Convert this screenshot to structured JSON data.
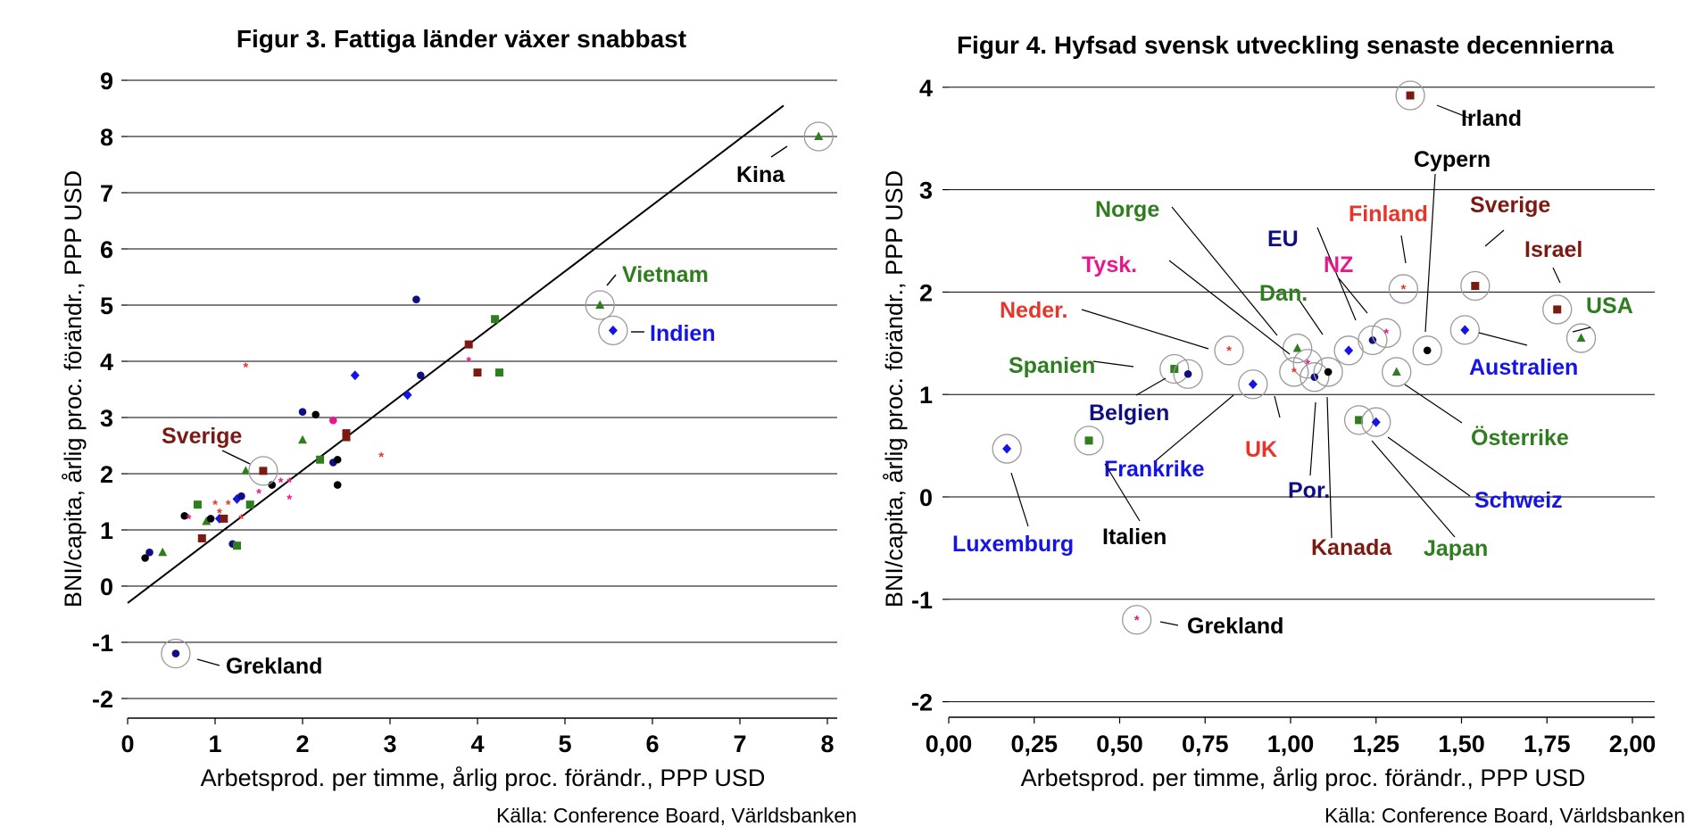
{
  "chart_data": [
    {
      "type": "scatter",
      "title": "Figur 3. Fattiga länder växer snabbast",
      "xlabel": "Arbetsprod. per timme, årlig proc. förändr., PPP USD",
      "ylabel": "BNI/capita, årlig proc. förändr., PPP USD",
      "source": "Källa: Conference Board, Världsbanken",
      "xlim": [
        0,
        8.3
      ],
      "ylim": [
        -2.3,
        9.3
      ],
      "xticks": [
        "0",
        "1",
        "2",
        "3",
        "4",
        "5",
        "6",
        "7",
        "8"
      ],
      "yticks": [
        "-2",
        "-1",
        "0",
        "1",
        "2",
        "3",
        "4",
        "5",
        "6",
        "7",
        "8",
        "9"
      ],
      "grid": "horizontal",
      "trendline": [
        [
          0,
          -0.3
        ],
        [
          7.5,
          8.55
        ]
      ],
      "labeled_points": [
        {
          "label": "Kina",
          "x": 7.9,
          "y": 8.0,
          "color": "#2e7d1f",
          "marker": "triangle",
          "label_color": "#000000"
        },
        {
          "label": "Vietnam",
          "x": 5.4,
          "y": 5.0,
          "color": "#2e7d1f",
          "marker": "triangle",
          "label_color": "#2e7d1f"
        },
        {
          "label": "Indien",
          "x": 5.55,
          "y": 4.55,
          "color": "#1414e6",
          "marker": "diamond",
          "label_color": "#1414e6"
        },
        {
          "label": "Sverige",
          "x": 1.55,
          "y": 2.05,
          "color": "#7b1a12",
          "marker": "square",
          "label_color": "#7b1a12"
        },
        {
          "label": "Grekland",
          "x": 0.55,
          "y": -1.2,
          "color": "#0f0f82",
          "marker": "circle",
          "label_color": "#000000"
        }
      ],
      "points": [
        {
          "x": 0.2,
          "y": 0.5,
          "color": "#000000",
          "marker": "circle"
        },
        {
          "x": 0.25,
          "y": 0.6,
          "color": "#0f0f82",
          "marker": "circle"
        },
        {
          "x": 0.4,
          "y": 0.6,
          "color": "#2e7d1f",
          "marker": "triangle"
        },
        {
          "x": 0.65,
          "y": 1.25,
          "color": "#000000",
          "marker": "circle"
        },
        {
          "x": 0.7,
          "y": 1.2,
          "color": "#e6188c",
          "marker": "star"
        },
        {
          "x": 0.8,
          "y": 1.45,
          "color": "#2e7d1f",
          "marker": "square"
        },
        {
          "x": 0.85,
          "y": 0.85,
          "color": "#7b1a12",
          "marker": "square"
        },
        {
          "x": 0.9,
          "y": 1.15,
          "color": "#2e7d1f",
          "marker": "triangle"
        },
        {
          "x": 0.95,
          "y": 1.2,
          "color": "#000000",
          "marker": "circle"
        },
        {
          "x": 1.0,
          "y": 1.45,
          "color": "#e8352b",
          "marker": "star"
        },
        {
          "x": 1.05,
          "y": 1.3,
          "color": "#e8352b",
          "marker": "star"
        },
        {
          "x": 1.05,
          "y": 1.2,
          "color": "#1414e6",
          "marker": "diamond"
        },
        {
          "x": 1.1,
          "y": 1.2,
          "color": "#7b1a12",
          "marker": "square"
        },
        {
          "x": 1.15,
          "y": 1.45,
          "color": "#e8352b",
          "marker": "star"
        },
        {
          "x": 1.2,
          "y": 0.75,
          "color": "#0f0f82",
          "marker": "circle"
        },
        {
          "x": 1.25,
          "y": 0.72,
          "color": "#2e7d1f",
          "marker": "square"
        },
        {
          "x": 1.25,
          "y": 1.55,
          "color": "#1414e6",
          "marker": "diamond"
        },
        {
          "x": 1.3,
          "y": 1.6,
          "color": "#0f0f82",
          "marker": "circle"
        },
        {
          "x": 1.3,
          "y": 1.2,
          "color": "#e8352b",
          "marker": "star"
        },
        {
          "x": 1.35,
          "y": 2.05,
          "color": "#2e7d1f",
          "marker": "triangle"
        },
        {
          "x": 1.35,
          "y": 3.9,
          "color": "#e8352b",
          "marker": "star"
        },
        {
          "x": 1.4,
          "y": 1.45,
          "color": "#2e7d1f",
          "marker": "square"
        },
        {
          "x": 1.5,
          "y": 1.65,
          "color": "#e6188c",
          "marker": "star"
        },
        {
          "x": 1.65,
          "y": 1.8,
          "color": "#000000",
          "marker": "circle"
        },
        {
          "x": 1.75,
          "y": 1.85,
          "color": "#e6188c",
          "marker": "star"
        },
        {
          "x": 1.85,
          "y": 1.55,
          "color": "#e6188c",
          "marker": "star"
        },
        {
          "x": 1.85,
          "y": 1.85,
          "color": "#e6188c",
          "marker": "star"
        },
        {
          "x": 2.0,
          "y": 3.1,
          "color": "#0f0f82",
          "marker": "circle"
        },
        {
          "x": 2.0,
          "y": 2.6,
          "color": "#2e7d1f",
          "marker": "triangle"
        },
        {
          "x": 2.15,
          "y": 3.05,
          "color": "#000000",
          "marker": "circle"
        },
        {
          "x": 2.2,
          "y": 2.25,
          "color": "#2e7d1f",
          "marker": "square"
        },
        {
          "x": 2.35,
          "y": 2.95,
          "color": "#e6188c",
          "marker": "circle"
        },
        {
          "x": 2.35,
          "y": 2.2,
          "color": "#0f0f82",
          "marker": "circle"
        },
        {
          "x": 2.4,
          "y": 2.25,
          "color": "#000000",
          "marker": "circle"
        },
        {
          "x": 2.4,
          "y": 1.8,
          "color": "#000000",
          "marker": "circle"
        },
        {
          "x": 2.5,
          "y": 2.65,
          "color": "#7b1a12",
          "marker": "square"
        },
        {
          "x": 2.5,
          "y": 2.72,
          "color": "#7b1a12",
          "marker": "square"
        },
        {
          "x": 2.6,
          "y": 3.75,
          "color": "#1414e6",
          "marker": "diamond"
        },
        {
          "x": 2.9,
          "y": 2.3,
          "color": "#e8352b",
          "marker": "star"
        },
        {
          "x": 3.2,
          "y": 3.4,
          "color": "#1414e6",
          "marker": "diamond"
        },
        {
          "x": 3.3,
          "y": 5.1,
          "color": "#0f0f82",
          "marker": "circle"
        },
        {
          "x": 3.35,
          "y": 3.75,
          "color": "#0f0f82",
          "marker": "circle"
        },
        {
          "x": 3.9,
          "y": 4.3,
          "color": "#7b1a12",
          "marker": "square"
        },
        {
          "x": 3.9,
          "y": 4.0,
          "color": "#e6188c",
          "marker": "star"
        },
        {
          "x": 4.0,
          "y": 3.8,
          "color": "#7b1a12",
          "marker": "square"
        },
        {
          "x": 4.2,
          "y": 4.75,
          "color": "#2e7d1f",
          "marker": "square"
        },
        {
          "x": 4.25,
          "y": 3.8,
          "color": "#2e7d1f",
          "marker": "square"
        }
      ]
    },
    {
      "type": "scatter",
      "title": "Figur 4. Hyfsad svensk utveckling senaste decennierna",
      "xlabel": "Arbetsprod. per timme, årlig proc. förändr., PPP USD",
      "ylabel": "BNI/capita, årlig proc. förändr., PPP USD",
      "source": "Källa: Conference Board, Världsbanken",
      "xlim": [
        0,
        2.07
      ],
      "ylim": [
        -2.2,
        4.2
      ],
      "xticks": [
        "0,00",
        "0,25",
        "0,50",
        "0,75",
        "1,00",
        "1,25",
        "1,50",
        "1,75",
        "2,00"
      ],
      "yticks": [
        "-2",
        "-1",
        "0",
        "1",
        "2",
        "3",
        "4"
      ],
      "grid": "horizontal",
      "points": [
        {
          "label": "Irland",
          "x": 1.35,
          "y": 3.92,
          "color": "#7b1a12",
          "marker": "square",
          "label_color": "#000000"
        },
        {
          "label": "Cypern",
          "x": 1.4,
          "y": 1.43,
          "color": "#000000",
          "marker": "circle",
          "label_color": "#000000"
        },
        {
          "label": "Finland",
          "x": 1.33,
          "y": 2.03,
          "color": "#e8352b",
          "marker": "star",
          "label_color": "#e8352b"
        },
        {
          "label": "Sverige",
          "x": 1.54,
          "y": 2.06,
          "color": "#7b1a12",
          "marker": "square",
          "label_color": "#7b1a12"
        },
        {
          "label": "Israel",
          "x": 1.78,
          "y": 1.83,
          "color": "#7b1a12",
          "marker": "square",
          "label_color": "#7b1a12"
        },
        {
          "label": "USA",
          "x": 1.85,
          "y": 1.55,
          "color": "#2e7d1f",
          "marker": "triangle",
          "label_color": "#2e7d1f"
        },
        {
          "label": "Australien",
          "x": 1.51,
          "y": 1.63,
          "color": "#1414e6",
          "marker": "diamond",
          "label_color": "#1414e6"
        },
        {
          "label": "Norge",
          "x": 1.02,
          "y": 1.45,
          "color": "#2e7d1f",
          "marker": "triangle",
          "label_color": "#2e7d1f"
        },
        {
          "label": "EU",
          "x": 1.24,
          "y": 1.53,
          "color": "#0f0f82",
          "marker": "circle",
          "label_color": "#0f0f82"
        },
        {
          "label": "NZ",
          "x": 1.28,
          "y": 1.6,
          "color": "#e6188c",
          "marker": "star",
          "label_color": "#e6188c"
        },
        {
          "label": "Dan.",
          "x": 1.17,
          "y": 1.43,
          "color": "#1414e6",
          "marker": "diamond",
          "label_color": "#2e7d1f"
        },
        {
          "label": "Tysk.",
          "x": 1.05,
          "y": 1.3,
          "color": "#e6188c",
          "marker": "star",
          "label_color": "#e6188c"
        },
        {
          "label": "Neder.",
          "x": 0.82,
          "y": 1.43,
          "color": "#e8352b",
          "marker": "star",
          "label_color": "#e8352b"
        },
        {
          "label": "Spanien",
          "x": 0.66,
          "y": 1.25,
          "color": "#2e7d1f",
          "marker": "square",
          "label_color": "#2e7d1f"
        },
        {
          "label": "Belgien",
          "x": 0.7,
          "y": 1.2,
          "color": "#0f0f82",
          "marker": "circle",
          "label_color": "#0f0f82"
        },
        {
          "label": "Frankrike",
          "x": 0.89,
          "y": 1.1,
          "color": "#1414e6",
          "marker": "diamond",
          "label_color": "#1414e6"
        },
        {
          "label": "UK",
          "x": 1.01,
          "y": 1.22,
          "color": "#e8352b",
          "marker": "star",
          "label_color": "#e8352b"
        },
        {
          "label": "Por.",
          "x": 1.07,
          "y": 1.17,
          "color": "#0f0f82",
          "marker": "circle",
          "label_color": "#0f0f82"
        },
        {
          "label": "Kanada",
          "x": 1.11,
          "y": 1.22,
          "color": "#000000",
          "marker": "circle",
          "label_color": "#7b1a12"
        },
        {
          "label": "Österrike",
          "x": 1.31,
          "y": 1.22,
          "color": "#2e7d1f",
          "marker": "triangle",
          "label_color": "#2e7d1f"
        },
        {
          "label": "Japan",
          "x": 1.2,
          "y": 0.75,
          "color": "#2e7d1f",
          "marker": "square",
          "label_color": "#2e7d1f"
        },
        {
          "label": "Schweiz",
          "x": 1.25,
          "y": 0.73,
          "color": "#1414e6",
          "marker": "diamond",
          "label_color": "#1414e6"
        },
        {
          "label": "Italien",
          "x": 0.41,
          "y": 0.55,
          "color": "#2e7d1f",
          "marker": "square",
          "label_color": "#000000"
        },
        {
          "label": "Luxemburg",
          "x": 0.17,
          "y": 0.47,
          "color": "#1414e6",
          "marker": "diamond",
          "label_color": "#1414e6"
        },
        {
          "label": "Grekland",
          "x": 0.55,
          "y": -1.2,
          "color": "#e6188c",
          "marker": "star",
          "label_color": "#000000"
        }
      ]
    }
  ]
}
